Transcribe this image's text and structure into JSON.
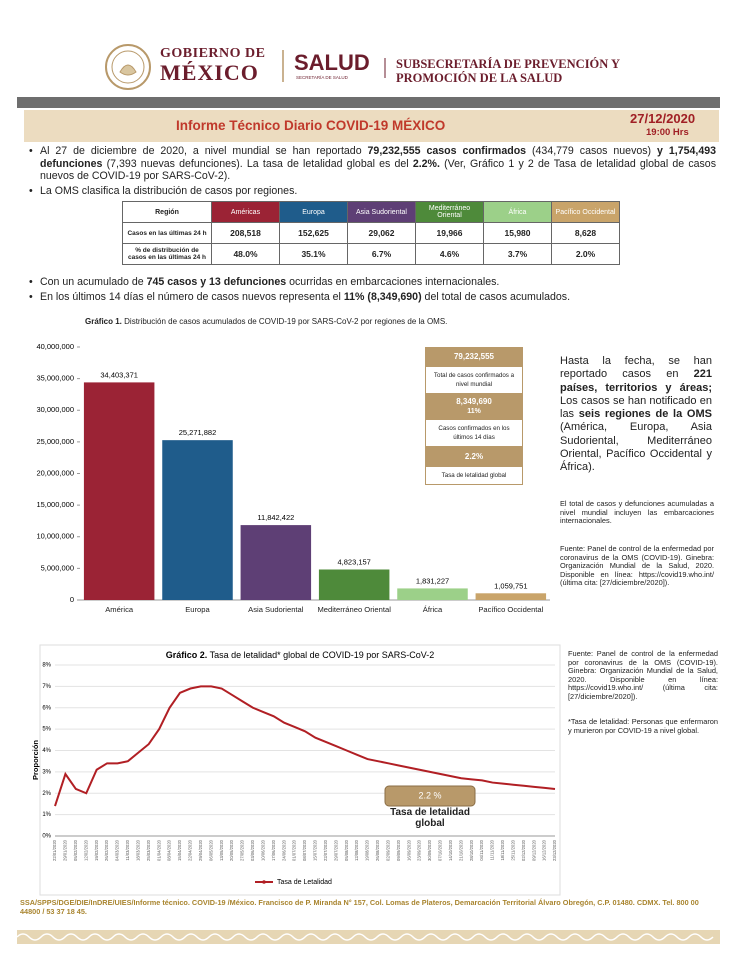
{
  "header": {
    "gov_line1": "GOBIERNO DE",
    "gov_line2": "MÉXICO",
    "agency": "SALUD",
    "agency_sub": "SECRETARÍA DE SALUD",
    "subsecretaria": [
      "SUBSECRETARÍA DE PREVENCIÓN Y",
      "PROMOCIÓN DE LA SALUD"
    ]
  },
  "report": {
    "title": "Informe Técnico Diario COVID-19 MÉXICO",
    "date": "27/12/2020",
    "time": "19:00 Hrs"
  },
  "bullets_top": [
    [
      {
        "text": "Al 27 de diciembre de 2020, a nivel mundial se han reportado ",
        "bold": false
      },
      {
        "text": "79,232,555 casos confirmados",
        "bold": true
      },
      {
        "text": " (434,779 casos nuevos) ",
        "bold": false
      },
      {
        "text": "y 1,754,493 defunciones",
        "bold": true
      },
      {
        "text": " (7,393 nuevas defunciones). La tasa de letalidad global es del ",
        "bold": false
      },
      {
        "text": "2.2%.",
        "bold": true
      },
      {
        "text": " (Ver, Gráfico 1 y 2 de Tasa de letalidad global de casos nuevos de COVID-19 por SARS-CoV-2).",
        "bold": false
      }
    ],
    [
      {
        "text": "La OMS clasifica la distribución de casos por regiones.",
        "bold": false
      }
    ]
  ],
  "table": {
    "headers": [
      "Región",
      "Américas",
      "Europa",
      "Asia Sudoriental",
      "Mediterráneo Oriental",
      "África",
      "Pacífico Occidental"
    ],
    "header_colors": [
      "#ffffff",
      "#9b2335",
      "#1f5c8b",
      "#5e3f75",
      "#4e8a3a",
      "#9cd089",
      "#c9a46a"
    ],
    "rows": [
      [
        "Casos en las últimas 24 h",
        "208,518",
        "152,625",
        "29,062",
        "19,966",
        "15,980",
        "8,628"
      ],
      [
        "% de distribución de casos en las últimas 24 h",
        "48.0%",
        "35.1%",
        "6.7%",
        "4.6%",
        "3.7%",
        "2.0%"
      ]
    ]
  },
  "bullets_mid": [
    [
      {
        "text": "Con un acumulado de ",
        "bold": false
      },
      {
        "text": "745 casos y 13 defunciones",
        "bold": true
      },
      {
        "text": " ocurridas en embarcaciones internacionales.",
        "bold": false
      }
    ],
    [
      {
        "text": "En los últimos 14 días el número de casos nuevos representa el ",
        "bold": false
      },
      {
        "text": "11% (8,349,690)",
        "bold": true
      },
      {
        "text": " del total de casos acumulados.",
        "bold": false
      }
    ]
  ],
  "chart_data": [
    {
      "type": "bar",
      "title_prefix": "Gráfico 1.",
      "title": "Distribución de casos acumulados de COVID-19 por SARS-CoV-2 por regiones de la OMS.",
      "categories": [
        "América",
        "Europa",
        "Asia Sudoriental",
        "Mediterráneo Oriental",
        "África",
        "Pacífico Occidental"
      ],
      "values": [
        34403371,
        25271882,
        11842422,
        4823157,
        1831227,
        1059751
      ],
      "value_labels": [
        "34,403,371",
        "25,271,882",
        "11,842,422",
        "4,823,157",
        "1,831,227",
        "1,059,751"
      ],
      "colors": [
        "#9b2335",
        "#1f5c8b",
        "#5e3f75",
        "#4e8a3a",
        "#9cd089",
        "#c9a46a"
      ],
      "ylim": [
        0,
        40000000
      ],
      "yticks": [
        0,
        {
          "value": 5000000,
          "label": "5,000,000"
        },
        {
          "value": 10000000,
          "label": "10,000,000"
        },
        {
          "value": 15000000,
          "label": "15,000,000"
        },
        {
          "value": 20000000,
          "label": "20,000,000"
        },
        {
          "value": 25000000,
          "label": "25,000,000"
        },
        {
          "value": 30000000,
          "label": "30,000,000"
        },
        {
          "value": 35000000,
          "label": "35,000,000"
        },
        {
          "value": 40000000,
          "label": "40,000,000"
        }
      ],
      "grid": false
    },
    {
      "type": "line",
      "title_prefix": "Gráfico 2.",
      "title": "Tasa de letalidad* global de COVID-19 por SARS-CoV-2",
      "y_label": "Proporción",
      "categories": [
        "22/01/2020",
        "29/01/2020",
        "05/02/2020",
        "12/02/2020",
        "19/02/2020",
        "26/02/2020",
        "04/03/2020",
        "11/03/2020",
        "18/03/2020",
        "25/03/2020",
        "01/04/2020",
        "08/04/2020",
        "15/04/2020",
        "22/04/2020",
        "29/04/2020",
        "06/05/2020",
        "13/05/2020",
        "20/05/2020",
        "27/05/2020",
        "03/06/2020",
        "10/06/2020",
        "17/06/2020",
        "24/06/2020",
        "01/07/2020",
        "08/07/2020",
        "15/07/2020",
        "22/07/2020",
        "29/07/2020",
        "05/08/2020",
        "12/08/2020",
        "19/08/2020",
        "26/08/2020",
        "02/09/2020",
        "09/09/2020",
        "16/09/2020",
        "23/09/2020",
        "30/09/2020",
        "07/10/2020",
        "14/10/2020",
        "21/10/2020",
        "28/10/2020",
        "04/11/2020",
        "11/11/2020",
        "18/11/2020",
        "25/11/2020",
        "02/12/2020",
        "09/12/2020",
        "16/12/2020",
        "23/12/2020"
      ],
      "series": [
        {
          "name": "Tasa de Letalidad",
          "color": "#b11f24",
          "values": [
            1.4,
            2.9,
            2.2,
            2.0,
            3.1,
            3.4,
            3.4,
            3.5,
            3.9,
            4.3,
            5.0,
            6.0,
            6.7,
            6.9,
            7.0,
            7.0,
            6.9,
            6.6,
            6.3,
            6.0,
            5.8,
            5.6,
            5.3,
            5.1,
            4.9,
            4.6,
            4.4,
            4.2,
            4.0,
            3.8,
            3.6,
            3.5,
            3.4,
            3.3,
            3.2,
            3.1,
            3.0,
            2.9,
            2.8,
            2.7,
            2.65,
            2.6,
            2.5,
            2.45,
            2.4,
            2.35,
            2.3,
            2.25,
            2.2
          ]
        }
      ],
      "ylim": [
        0,
        8
      ],
      "yticks": [
        {
          "value": 0,
          "label": "0%"
        },
        {
          "value": 1,
          "label": "1%"
        },
        {
          "value": 2,
          "label": "2%"
        },
        {
          "value": 3,
          "label": "3%"
        },
        {
          "value": 4,
          "label": "4%"
        },
        {
          "value": 5,
          "label": "5%"
        },
        {
          "value": 6,
          "label": "6%"
        },
        {
          "value": 7,
          "label": "7%"
        },
        {
          "value": 8,
          "label": "8%"
        }
      ],
      "grid": true,
      "legend": "bottom",
      "annotation": {
        "label": "2.2 %",
        "text": "Tasa de letalidad global"
      }
    }
  ],
  "summary_box": {
    "total": "79,232,555",
    "total_label": "Total de casos confirmados a nivel mundial",
    "recent": "8,349,690",
    "recent_pct": "11%",
    "recent_label": "Casos confirmados en los últimos 14 días",
    "rate": "2.2%",
    "rate_label": "Tasa de letalidad global"
  },
  "side_text": [
    {
      "text": "Hasta la fecha, se han reportado casos en ",
      "bold": false
    },
    {
      "text": "221 países, territorios y áreas;",
      "bold": true
    },
    {
      "text": " Los casos se han notificado en las ",
      "bold": false
    },
    {
      "text": "seis regiones de la OMS",
      "bold": true
    },
    {
      "text": " (América, Europa, Asia Sudoriental, Mediterráneo Oriental, Pacífico Occidental y África).",
      "bold": false
    }
  ],
  "side_note": "El total de casos y defunciones acumuladas a nivel mundial incluyen las embarcaciones internacionales.",
  "source_1": "Fuente: Panel de control de la enfermedad por coronavirus de la OMS (COVID-19). Ginebra: Organización Mundial de la Salud, 2020. Disponible en línea: https://covid19.who.int/ (última cita: [27/diciembre/2020]).",
  "source_2": "Fuente: Panel de control de la enfermedad por coronavirus de la OMS (COVID-19). Ginebra: Organización Mundial de la Salud, 2020. Disponible en línea: https://covid19.who.int/ (última cita: [27/diciembre/2020]).",
  "footnote": "*Tasa de letalidad: Personas que enfermaron y murieron por COVID-19 a nivel global.",
  "footer": "SSA/SPPS/DGE/DIE/InDRE/UIES/Informe técnico. COVID-19 /México. Francisco de P. Miranda N° 157, Col. Lomas de Plateros, Demarcación Territorial Álvaro Obregón, C.P. 01480. CDMX. Tel. 800 00 44800 / 53 37 18 45."
}
